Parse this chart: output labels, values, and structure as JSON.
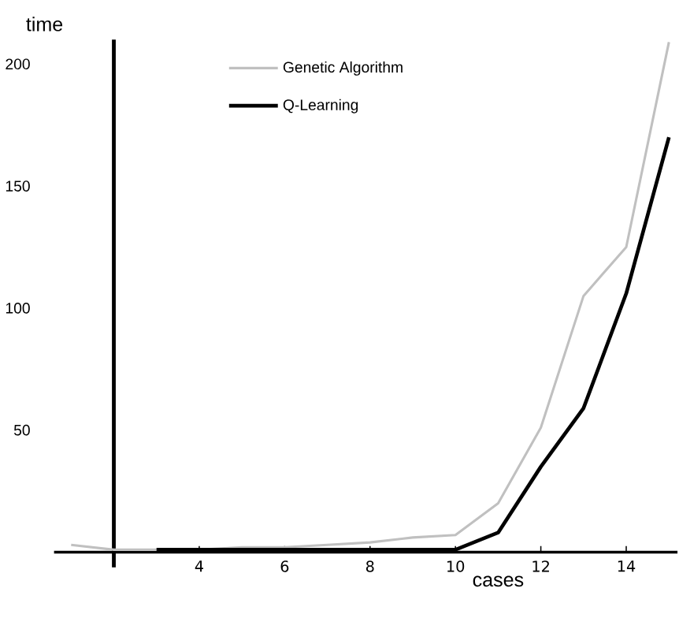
{
  "chart_data": {
    "type": "line",
    "xlabel": "cases",
    "ylabel": "time",
    "x": [
      1,
      2,
      3,
      4,
      5,
      6,
      7,
      8,
      9,
      10,
      11,
      12,
      13,
      14,
      15
    ],
    "series": [
      {
        "name": "Genetic Algorithm",
        "color": "#c0c0c0",
        "values": [
          3,
          1,
          1,
          1,
          2,
          2,
          3,
          4,
          6,
          7,
          20,
          51,
          105,
          125,
          209
        ]
      },
      {
        "name": "Q-Learning",
        "color": "#000000",
        "x": [
          3,
          4,
          5,
          6,
          7,
          8,
          9,
          10,
          11,
          12,
          13,
          14,
          15
        ],
        "values": [
          1,
          1,
          1,
          1,
          1,
          1,
          1,
          1,
          8,
          35,
          59,
          106,
          170
        ]
      }
    ],
    "xlim": [
      0.6,
      15.2
    ],
    "ylim": [
      0,
      210
    ],
    "xticks": [
      4,
      6,
      8,
      10,
      12,
      14
    ],
    "yticks": [
      50,
      100,
      150,
      200
    ],
    "ref_lines": [
      {
        "axis": "x",
        "value": 2,
        "color": "#000000"
      }
    ],
    "grid": false,
    "legend": "top",
    "marker": "none",
    "line_style": "solid"
  }
}
